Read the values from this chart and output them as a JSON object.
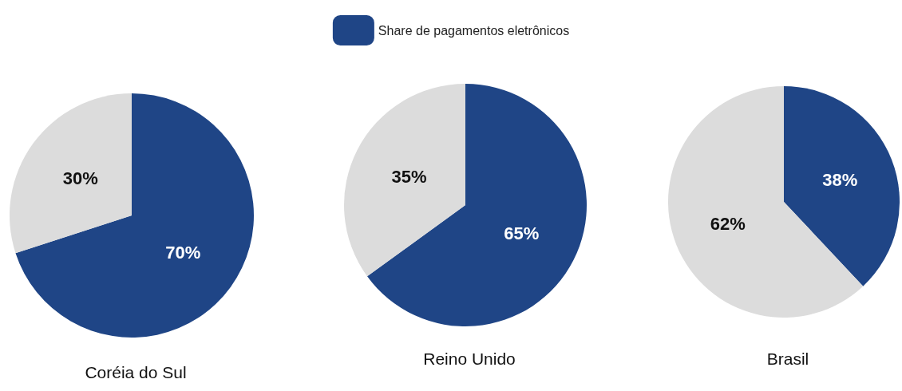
{
  "chart_data": [
    {
      "type": "pie",
      "title": "Coréia do Sul",
      "categories": [
        null,
        null
      ],
      "values": [
        70,
        30
      ],
      "colors": [
        "#1f4586",
        "#dcdcdc"
      ],
      "value_labels": [
        "70%",
        "30%"
      ],
      "legend": false
    },
    {
      "type": "pie",
      "title": "Reino Unido",
      "categories": [
        "Share de pagamentos eletrônicos",
        null
      ],
      "values": [
        65,
        35
      ],
      "colors": [
        "#1f4586",
        "#dcdcdc"
      ],
      "value_labels": [
        "65%",
        "35%"
      ],
      "legend": "top"
    },
    {
      "type": "pie",
      "title": "Brasil",
      "categories": [
        null,
        null
      ],
      "values": [
        38,
        62
      ],
      "colors": [
        "#1f4586",
        "#dcdcdc"
      ],
      "value_labels": [
        "38%",
        "62%"
      ],
      "legend": false
    }
  ]
}
